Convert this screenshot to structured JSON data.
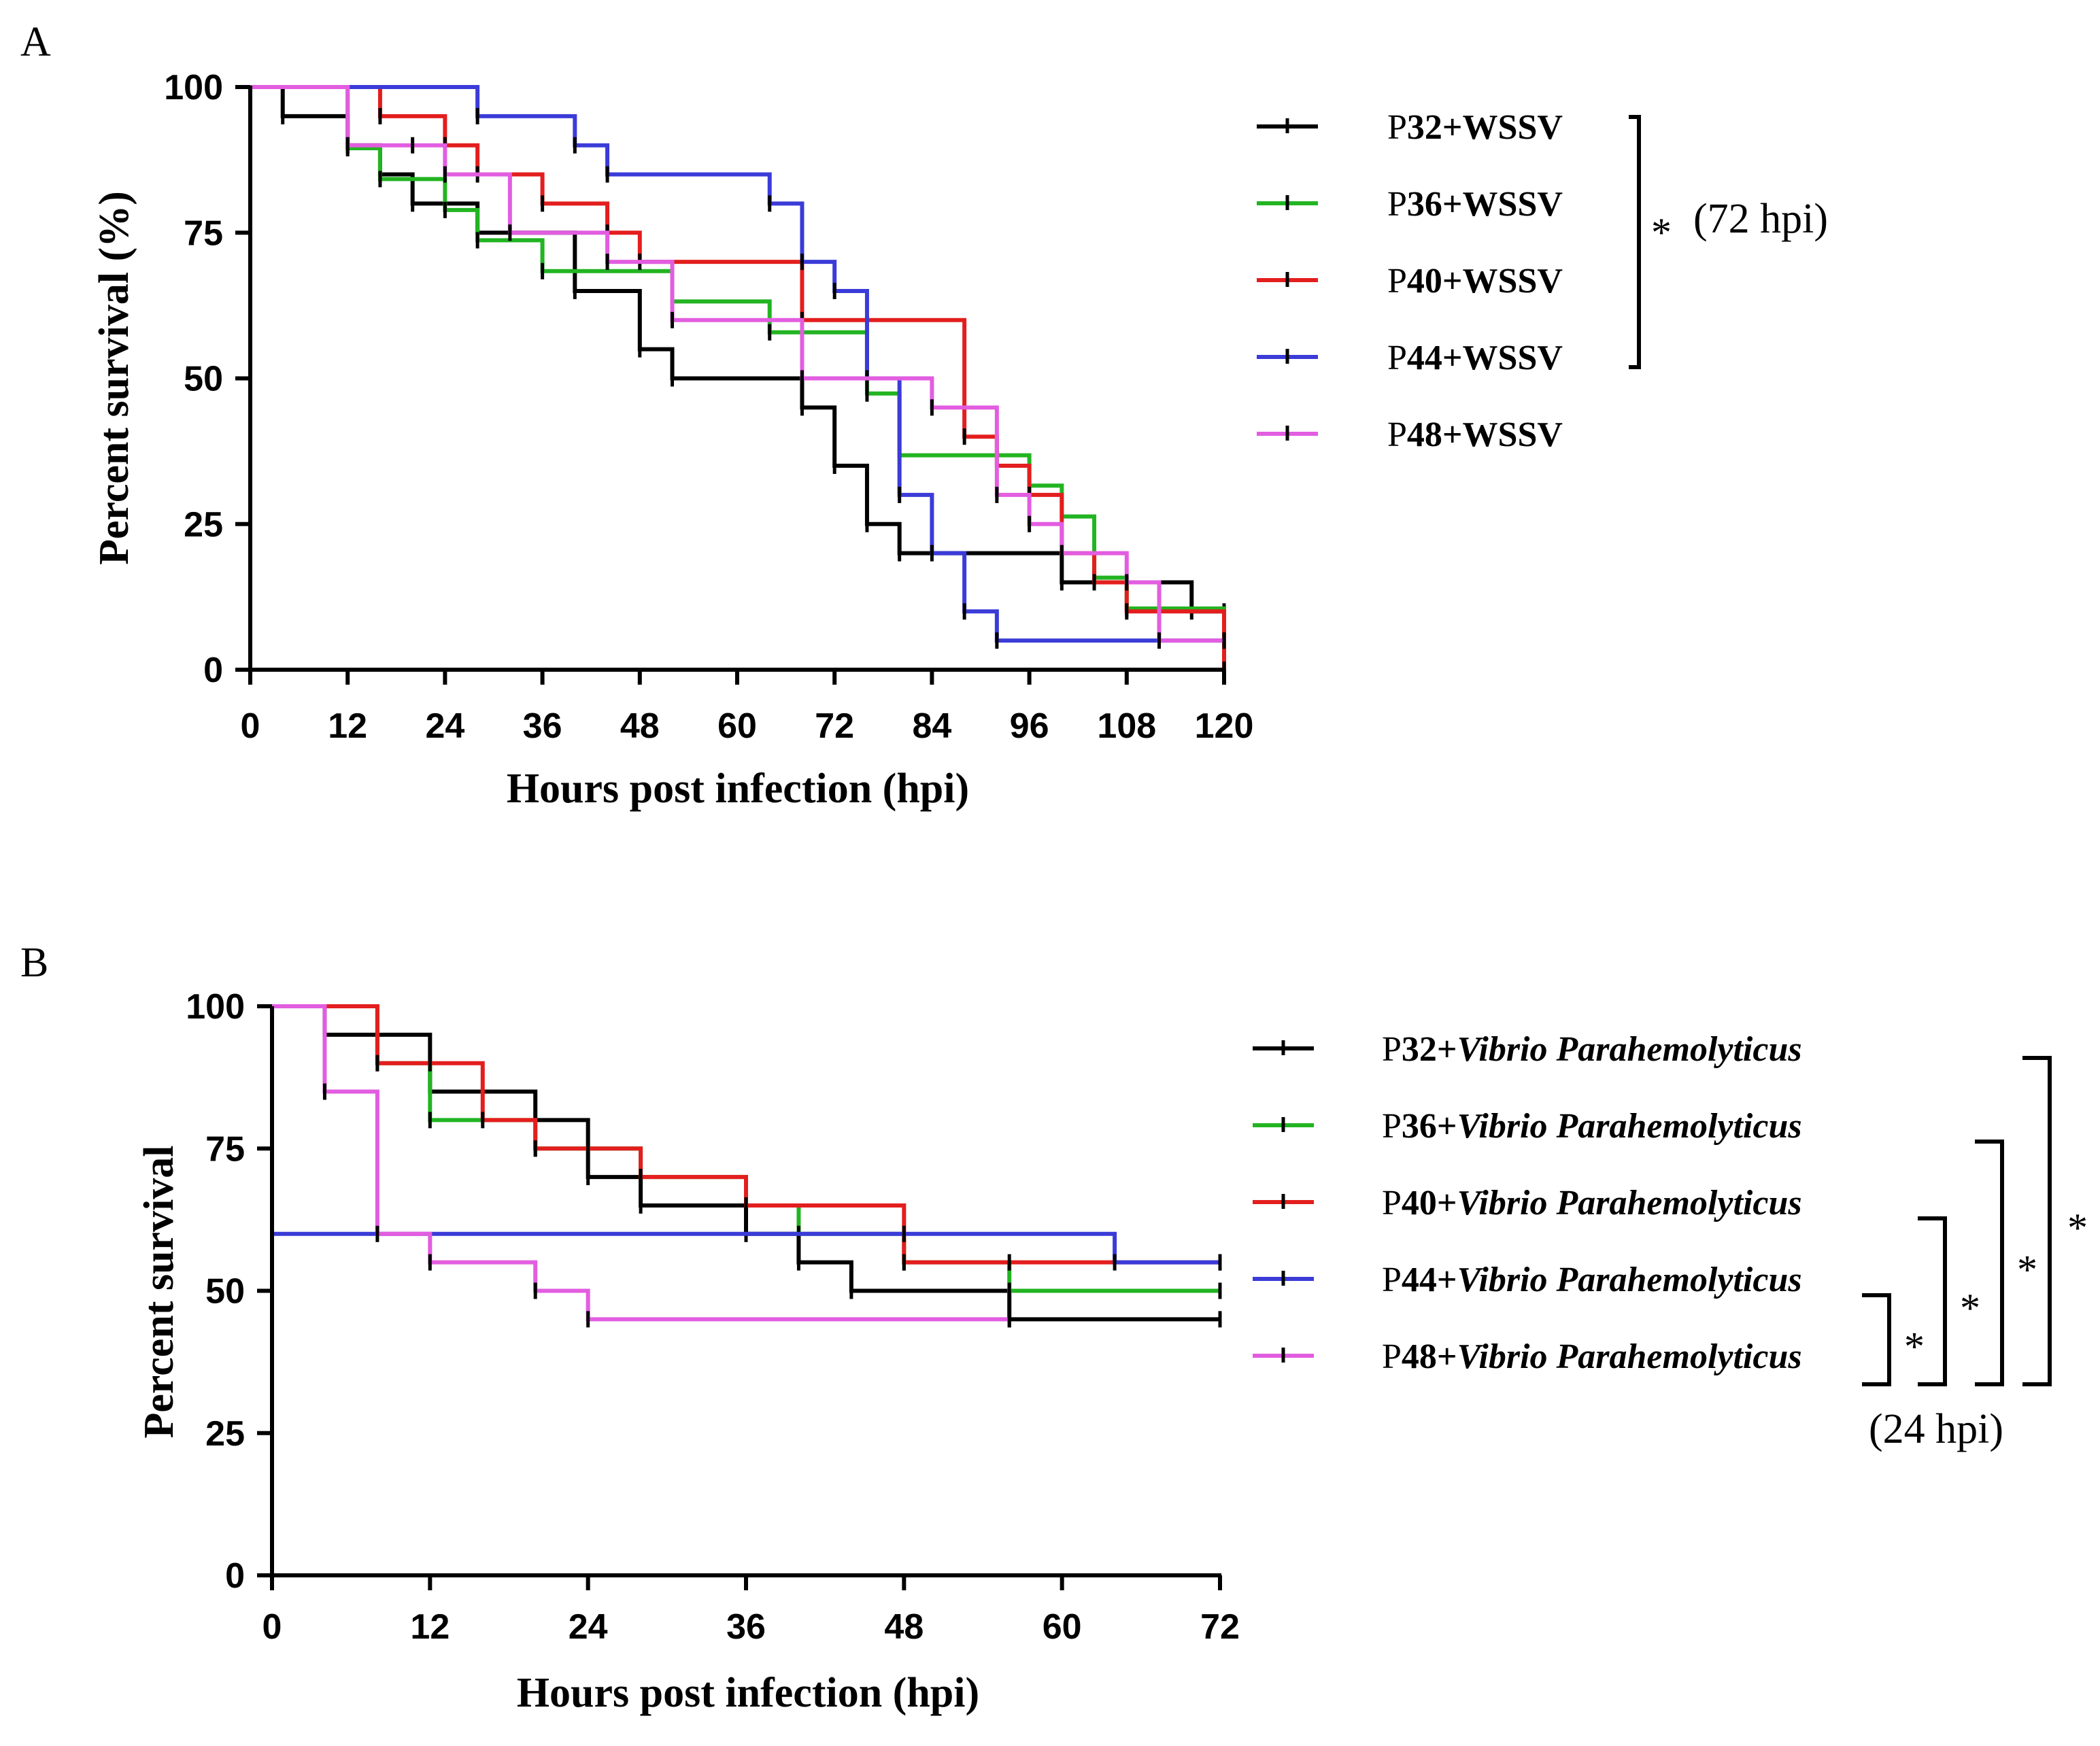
{
  "chart_data": [
    {
      "panel_label": "A",
      "type": "line",
      "step": true,
      "xlabel": "Hours post infection (hpi)",
      "ylabel": "Percent survival (%)",
      "xlim": [
        0,
        120
      ],
      "ylim": [
        0,
        100
      ],
      "xticks": [
        0,
        12,
        24,
        36,
        48,
        60,
        72,
        84,
        96,
        108,
        120
      ],
      "yticks": [
        0,
        25,
        50,
        75,
        100
      ],
      "legend_position": "right",
      "significance": [
        {
          "symbol": "*",
          "text": "(72 hpi)",
          "spans": [
            "P32",
            "P44"
          ]
        }
      ],
      "series": [
        {
          "name": "P32+WSSV",
          "prefix": "P",
          "num": "32",
          "suffix": "+WSSV",
          "color": "#000000",
          "x": [
            0,
            4,
            12,
            16,
            20,
            28,
            40,
            48,
            52,
            68,
            72,
            76,
            80,
            100,
            116,
            120
          ],
          "y": [
            100,
            95,
            90,
            85,
            80,
            75,
            65,
            55,
            50,
            45,
            35,
            25,
            20,
            15,
            10,
            10
          ]
        },
        {
          "name": "P36+WSSV",
          "prefix": "P",
          "num": "36",
          "suffix": "+WSSV",
          "color": "#22b422",
          "x": [
            0,
            12,
            16,
            24,
            28,
            36,
            52,
            64,
            76,
            80,
            96,
            100,
            104,
            108,
            120
          ],
          "y": [
            100,
            89.5,
            84.2,
            78.9,
            73.7,
            68.4,
            63.2,
            57.9,
            47.4,
            36.8,
            31.6,
            26.3,
            15.8,
            10.5,
            5.3
          ]
        },
        {
          "name": "P40+WSSV",
          "prefix": "P",
          "num": "40",
          "suffix": "+WSSV",
          "color": "#e31e1e",
          "x": [
            0,
            16,
            24,
            28,
            36,
            44,
            48,
            68,
            88,
            92,
            96,
            100,
            104,
            108,
            120
          ],
          "y": [
            100,
            95,
            90,
            85,
            80,
            75,
            70,
            60,
            40,
            35,
            30,
            20,
            15,
            10,
            0
          ]
        },
        {
          "name": "P44+WSSV",
          "prefix": "P",
          "num": "44",
          "suffix": "+WSSV",
          "color": "#3b3bd8",
          "x": [
            0,
            28,
            40,
            44,
            64,
            68,
            72,
            76,
            80,
            84,
            88,
            92,
            120
          ],
          "y": [
            100,
            95,
            90,
            85,
            80,
            70,
            65,
            50,
            30,
            20,
            10,
            5,
            5
          ]
        },
        {
          "name": "P48+WSSV",
          "prefix": "P",
          "num": "48",
          "suffix": "+WSSV",
          "color": "#e25de0",
          "x": [
            0,
            12,
            20,
            24,
            32,
            44,
            52,
            68,
            84,
            92,
            96,
            100,
            108,
            112,
            120
          ],
          "y": [
            100,
            90,
            90,
            85,
            75,
            70,
            60,
            50,
            45,
            30,
            25,
            20,
            15,
            5,
            5
          ]
        }
      ]
    },
    {
      "panel_label": "B",
      "type": "line",
      "step": true,
      "xlabel": "Hours post infection (hpi)",
      "ylabel": "Percent survival",
      "xlim": [
        0,
        72
      ],
      "ylim": [
        0,
        100
      ],
      "xticks": [
        0,
        12,
        24,
        36,
        48,
        60,
        72
      ],
      "yticks": [
        0,
        25,
        50,
        75,
        100
      ],
      "legend_position": "right",
      "significance_note": "(24 hpi)",
      "significance": [
        {
          "symbol": "*",
          "spans": [
            "P44",
            "P48"
          ]
        },
        {
          "symbol": "*",
          "spans": [
            "P40",
            "P48"
          ]
        },
        {
          "symbol": "*",
          "spans": [
            "P36",
            "P48"
          ]
        },
        {
          "symbol": "*",
          "spans": [
            "P32",
            "P48"
          ]
        }
      ],
      "series": [
        {
          "name": "P32+Vibrio Parahemolyticus",
          "prefix": "P",
          "num": "32",
          "plus": "+",
          "italic": "Vibrio Parahemolyticus",
          "color": "#000000",
          "x": [
            0,
            4,
            12,
            20,
            24,
            28,
            36,
            40,
            44,
            56,
            72
          ],
          "y": [
            100,
            95,
            85,
            80,
            70,
            65,
            60,
            55,
            50,
            45,
            45
          ]
        },
        {
          "name": "P36+Vibrio Parahemolyticus",
          "prefix": "P",
          "num": "36",
          "plus": "+",
          "italic": "Vibrio Parahemolyticus",
          "color": "#22b422",
          "x": [
            0,
            8,
            12,
            20,
            28,
            36,
            40,
            48,
            56,
            72
          ],
          "y": [
            100,
            90,
            80,
            75,
            70,
            65,
            60,
            55,
            50,
            50
          ]
        },
        {
          "name": "P40+Vibrio Parahemolyticus",
          "prefix": "P",
          "num": "40",
          "plus": "+",
          "italic": "Vibrio Parahemolyticus",
          "color": "#e31e1e",
          "x": [
            0,
            8,
            12,
            16,
            20,
            24,
            28,
            36,
            48,
            56,
            72
          ],
          "y": [
            100,
            90,
            90,
            80,
            75,
            75,
            70,
            65,
            55,
            55,
            55
          ]
        },
        {
          "name": "P44+Vibrio Parahemolyticus",
          "prefix": "P",
          "num": "44",
          "plus": "+",
          "italic": "Vibrio Parahemolyticus",
          "color": "#3b3bd8",
          "x": [
            0,
            48,
            64,
            72
          ],
          "y": [
            60,
            60,
            55,
            55
          ]
        },
        {
          "name": "P48+Vibrio Parahemolyticus",
          "prefix": "P",
          "num": "48",
          "plus": "+",
          "italic": "Vibrio Parahemolyticus",
          "color": "#e25de0",
          "x": [
            0,
            4,
            8,
            12,
            20,
            24,
            56
          ],
          "y": [
            100,
            85,
            60,
            55,
            50,
            45,
            45
          ]
        }
      ]
    }
  ]
}
